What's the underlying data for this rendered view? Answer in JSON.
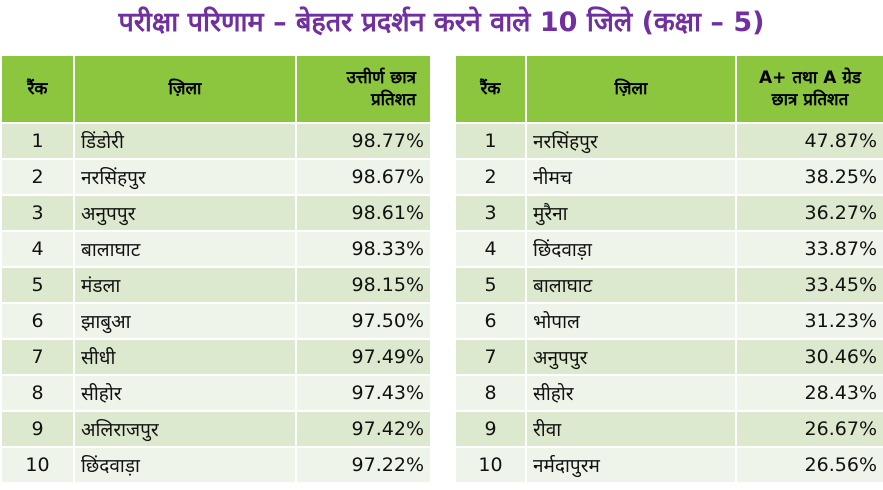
{
  "title": "परीक्षा परिणाम – बेहतर प्रदर्शन करने वाले 10 जिले (कक्षा – 5)",
  "left_table": {
    "headers": {
      "rank": "रैंक",
      "district": "ज़िला",
      "value_line1": "उत्तीर्ण छात्र",
      "value_line2": "प्रतिशत"
    },
    "rows": [
      {
        "rank": "1",
        "district": "डिंडोरी",
        "value": "98.77%"
      },
      {
        "rank": "2",
        "district": "नरसिंहपुर",
        "value": "98.67%"
      },
      {
        "rank": "3",
        "district": "अनुपपुर",
        "value": "98.61%"
      },
      {
        "rank": "4",
        "district": "बालाघाट",
        "value": "98.33%"
      },
      {
        "rank": "5",
        "district": "मंडला",
        "value": "98.15%"
      },
      {
        "rank": "6",
        "district": "झाबुआ",
        "value": "97.50%"
      },
      {
        "rank": "7",
        "district": "सीधी",
        "value": "97.49%"
      },
      {
        "rank": "8",
        "district": "सीहोर",
        "value": "97.43%"
      },
      {
        "rank": "9",
        "district": "अलिराजपुर",
        "value": "97.42%"
      },
      {
        "rank": "10",
        "district": "छिंदवाड़ा",
        "value": "97.22%"
      }
    ]
  },
  "right_table": {
    "headers": {
      "rank": "रैंक",
      "district": "ज़िला",
      "value_line1": "A+ तथा A ग्रेड",
      "value_line2": "छात्र प्रतिशत"
    },
    "rows": [
      {
        "rank": "1",
        "district": "नरसिंहपुर",
        "value": "47.87%"
      },
      {
        "rank": "2",
        "district": "नीमच",
        "value": "38.25%"
      },
      {
        "rank": "3",
        "district": "मुरैना",
        "value": "36.27%"
      },
      {
        "rank": "4",
        "district": "छिंदवाड़ा",
        "value": "33.87%"
      },
      {
        "rank": "5",
        "district": "बालाघाट",
        "value": "33.45%"
      },
      {
        "rank": "6",
        "district": "भोपाल",
        "value": "31.23%"
      },
      {
        "rank": "7",
        "district": "अनुपपुर",
        "value": "30.46%"
      },
      {
        "rank": "8",
        "district": "सीहोर",
        "value": "28.43%"
      },
      {
        "rank": "9",
        "district": "रीवा",
        "value": "26.67%"
      },
      {
        "rank": "10",
        "district": "नर्मदापुरम",
        "value": "26.56%"
      }
    ]
  },
  "colors": {
    "title": "#7030a0",
    "header_bg": "#8cc63e",
    "row_odd": "#dde9cf",
    "row_even": "#eff4ea"
  }
}
